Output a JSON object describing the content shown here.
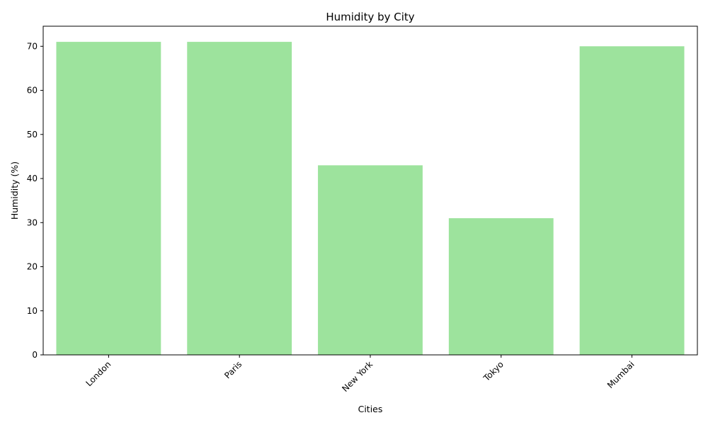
{
  "chart_data": {
    "type": "bar",
    "title": "Humidity by City",
    "xlabel": "Cities",
    "ylabel": "Humidity (%)",
    "categories": [
      "London",
      "Paris",
      "New York",
      "Tokyo",
      "Mumbai"
    ],
    "values": [
      71,
      71,
      43,
      31,
      70
    ],
    "ylim": [
      0,
      74.55
    ],
    "yticks": [
      0,
      10,
      20,
      30,
      40,
      50,
      60,
      70
    ],
    "bar_color": "#9de39d",
    "grid": false,
    "legend": "none",
    "xtick_rotation": 45
  }
}
